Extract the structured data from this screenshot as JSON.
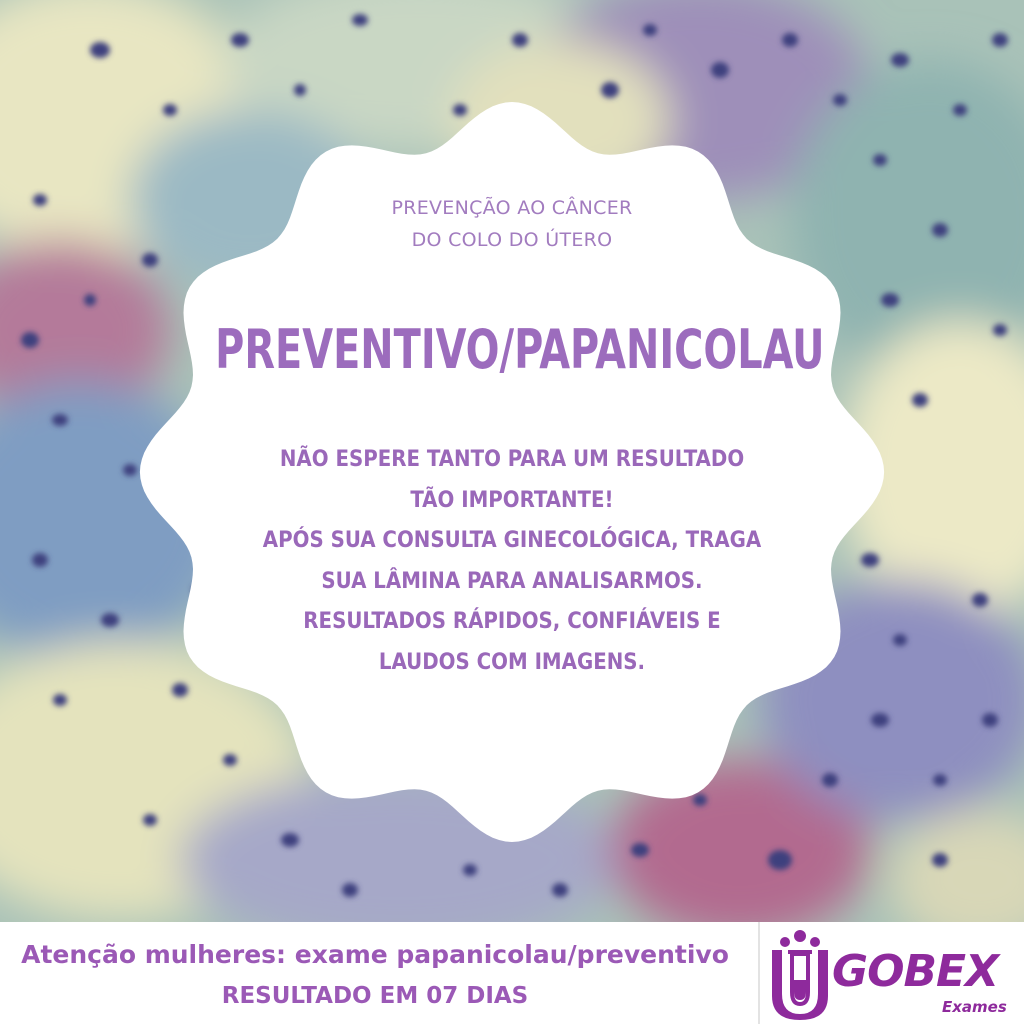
{
  "hero": {
    "subtitle_line1": "PREVENÇÃO AO CÂNCER",
    "subtitle_line2": "DO COLO DO ÚTERO",
    "title": "PREVENTIVO/PAPANICOLAU",
    "body_lines": [
      "NÃO ESPERE TANTO PARA UM RESULTADO",
      "TÃO IMPORTANTE!",
      "APÓS SUA CONSULTA GINECOLÓGICA, TRAGA",
      "SUA LÂMINA PARA ANALISARMOS.",
      "RESULTADOS RÁPIDOS, CONFIÁVEIS E",
      "LAUDOS COM IMAGENS."
    ]
  },
  "footer": {
    "line1": "Atenção mulheres: exame papanicolau/preventivo",
    "line2": "RESULTADO EM 07 DIAS"
  },
  "logo": {
    "name": "GOBEX",
    "subtitle": "Exames"
  },
  "colors": {
    "accent": "#9b6fb5",
    "brand": "#8e2a9c",
    "badge": "#ffffff"
  }
}
